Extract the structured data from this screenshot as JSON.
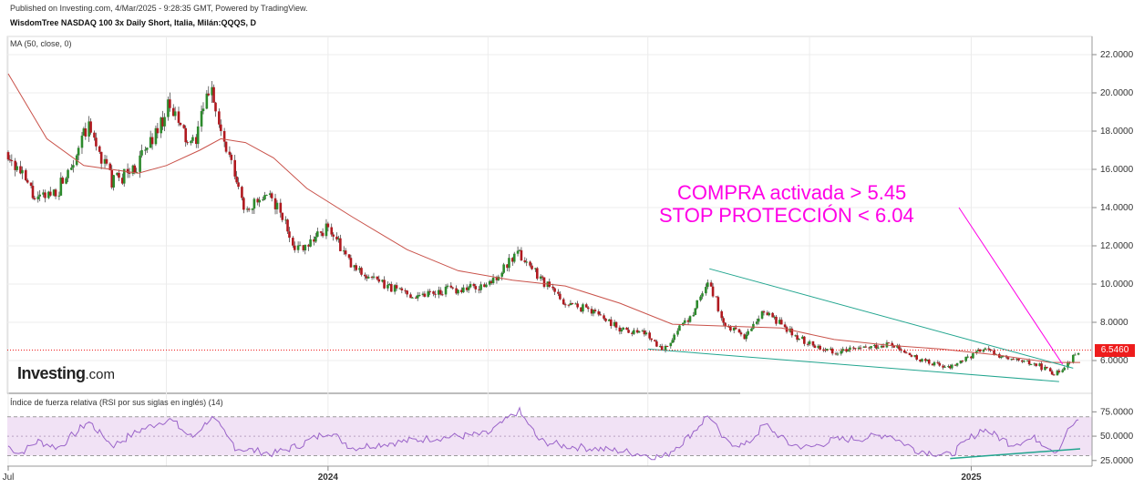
{
  "header": {
    "published": "Published on Investing.com, 4/Mar/2025 - 9:28:35 GMT, Powered by TradingView.",
    "instrument": "WisdomTree NASDAQ 100 3x Daily Short, Italia, Milán:QQQS, D",
    "ma_label": "MA (50, close, 0)",
    "rsi_label": "Índice de fuerza relativa (RSI por sus siglas en inglés) (14)"
  },
  "logo": {
    "brand": "Investing",
    "suffix": ".com"
  },
  "annotations": {
    "line1": "COMPRA activada > 5.45",
    "line2": "STOP PROTECCIÓN < 6.04"
  },
  "current_price_label": "6.5460",
  "colors": {
    "up": "#2c8a2c",
    "down": "#b0191f",
    "ma": "#c9524a",
    "wedge": "#22a58f",
    "annotation": "#ff00e6",
    "rsi_line": "#9a63c9",
    "rsi_band": "#f1e2f5",
    "price_line": "#ee1c1c"
  },
  "chart_data": [
    {
      "type": "candlestick",
      "title": "WisdomTree NASDAQ 100 3x Daily Short, Italia, Milán:QQQS, D",
      "y_ticks": [
        "22.0000",
        "20.0000",
        "18.0000",
        "16.0000",
        "14.0000",
        "12.0000",
        "10.0000",
        "8.0000",
        "6.0000"
      ],
      "x_ticks": [
        "Jul",
        "2024",
        "2025"
      ],
      "ylim": [
        5,
        22.5
      ],
      "close_series": [
        {
          "d": "2023-07-03",
          "v": 16.9
        },
        {
          "d": "2023-07-20",
          "v": 14.3
        },
        {
          "d": "2023-08-01",
          "v": 15.0
        },
        {
          "d": "2023-08-18",
          "v": 18.2
        },
        {
          "d": "2023-09-01",
          "v": 15.3
        },
        {
          "d": "2023-09-15",
          "v": 16.2
        },
        {
          "d": "2023-10-03",
          "v": 19.3
        },
        {
          "d": "2023-10-16",
          "v": 17.0
        },
        {
          "d": "2023-10-27",
          "v": 20.5
        },
        {
          "d": "2023-11-01",
          "v": 18.0
        },
        {
          "d": "2023-11-15",
          "v": 14.0
        },
        {
          "d": "2023-12-01",
          "v": 14.5
        },
        {
          "d": "2023-12-15",
          "v": 11.8
        },
        {
          "d": "2024-01-02",
          "v": 13.0
        },
        {
          "d": "2024-01-15",
          "v": 10.9
        },
        {
          "d": "2024-02-01",
          "v": 10.0
        },
        {
          "d": "2024-02-20",
          "v": 9.4
        },
        {
          "d": "2024-03-01",
          "v": 9.6
        },
        {
          "d": "2024-04-01",
          "v": 9.9
        },
        {
          "d": "2024-04-19",
          "v": 11.6
        },
        {
          "d": "2024-05-01",
          "v": 10.4
        },
        {
          "d": "2024-05-15",
          "v": 9.0
        },
        {
          "d": "2024-06-01",
          "v": 8.6
        },
        {
          "d": "2024-06-15",
          "v": 7.7
        },
        {
          "d": "2024-07-01",
          "v": 7.4
        },
        {
          "d": "2024-07-10",
          "v": 6.6
        },
        {
          "d": "2024-07-25",
          "v": 8.2
        },
        {
          "d": "2024-08-05",
          "v": 10.2
        },
        {
          "d": "2024-08-14",
          "v": 7.8
        },
        {
          "d": "2024-08-26",
          "v": 7.2
        },
        {
          "d": "2024-09-06",
          "v": 8.6
        },
        {
          "d": "2024-09-20",
          "v": 7.5
        },
        {
          "d": "2024-10-01",
          "v": 6.9
        },
        {
          "d": "2024-10-15",
          "v": 6.5
        },
        {
          "d": "2024-11-01",
          "v": 6.6
        },
        {
          "d": "2024-11-15",
          "v": 6.9
        },
        {
          "d": "2024-12-01",
          "v": 6.1
        },
        {
          "d": "2024-12-20",
          "v": 5.6
        },
        {
          "d": "2025-01-08",
          "v": 6.6
        },
        {
          "d": "2025-01-24",
          "v": 6.0
        },
        {
          "d": "2025-02-07",
          "v": 5.8
        },
        {
          "d": "2025-02-19",
          "v": 5.3
        },
        {
          "d": "2025-03-04",
          "v": 6.55
        }
      ],
      "ma_series": [
        {
          "d": "2023-07-03",
          "v": 21.0
        },
        {
          "d": "2023-07-25",
          "v": 17.6
        },
        {
          "d": "2023-08-15",
          "v": 16.2
        },
        {
          "d": "2023-09-15",
          "v": 15.8
        },
        {
          "d": "2023-10-01",
          "v": 16.2
        },
        {
          "d": "2023-10-20",
          "v": 17.0
        },
        {
          "d": "2023-11-01",
          "v": 17.6
        },
        {
          "d": "2023-11-15",
          "v": 17.4
        },
        {
          "d": "2023-12-01",
          "v": 16.6
        },
        {
          "d": "2023-12-20",
          "v": 15.0
        },
        {
          "d": "2024-01-15",
          "v": 13.5
        },
        {
          "d": "2024-02-15",
          "v": 11.8
        },
        {
          "d": "2024-03-15",
          "v": 10.7
        },
        {
          "d": "2024-04-15",
          "v": 10.2
        },
        {
          "d": "2024-05-15",
          "v": 9.9
        },
        {
          "d": "2024-06-15",
          "v": 9.0
        },
        {
          "d": "2024-07-15",
          "v": 7.9
        },
        {
          "d": "2024-08-15",
          "v": 7.8
        },
        {
          "d": "2024-09-15",
          "v": 7.7
        },
        {
          "d": "2024-10-15",
          "v": 7.1
        },
        {
          "d": "2024-11-15",
          "v": 6.8
        },
        {
          "d": "2024-12-15",
          "v": 6.6
        },
        {
          "d": "2025-01-15",
          "v": 6.3
        },
        {
          "d": "2025-02-15",
          "v": 5.9
        },
        {
          "d": "2025-03-04",
          "v": 5.9
        }
      ],
      "wedge_upper": [
        {
          "d": "2024-08-05",
          "v": 10.8
        },
        {
          "d": "2025-02-28",
          "v": 5.6
        }
      ],
      "wedge_lower": [
        {
          "d": "2024-07-01",
          "v": 6.6
        },
        {
          "d": "2025-02-20",
          "v": 4.9
        }
      ],
      "pointer_line": [
        {
          "d": "2024-12-25",
          "v": 14.0
        },
        {
          "d": "2025-02-22",
          "v": 5.8
        }
      ],
      "current_price": 6.546
    },
    {
      "type": "line",
      "title": "Índice de fuerza relativa (RSI por sus siglas en inglés) (14)",
      "y_ticks": [
        "75.0000",
        "50.0000",
        "25.0000"
      ],
      "ylim": [
        22,
        80
      ],
      "band": [
        30,
        70
      ],
      "series": [
        {
          "d": "2023-07-03",
          "v": 40
        },
        {
          "d": "2023-07-10",
          "v": 32
        },
        {
          "d": "2023-07-20",
          "v": 45
        },
        {
          "d": "2023-08-01",
          "v": 38
        },
        {
          "d": "2023-08-18",
          "v": 65
        },
        {
          "d": "2023-09-01",
          "v": 40
        },
        {
          "d": "2023-09-15",
          "v": 55
        },
        {
          "d": "2023-10-03",
          "v": 68
        },
        {
          "d": "2023-10-16",
          "v": 48
        },
        {
          "d": "2023-10-27",
          "v": 70
        },
        {
          "d": "2023-11-10",
          "v": 38
        },
        {
          "d": "2023-12-01",
          "v": 32
        },
        {
          "d": "2023-12-15",
          "v": 40
        },
        {
          "d": "2024-01-02",
          "v": 55
        },
        {
          "d": "2024-01-15",
          "v": 38
        },
        {
          "d": "2024-02-01",
          "v": 42
        },
        {
          "d": "2024-03-01",
          "v": 48
        },
        {
          "d": "2024-04-01",
          "v": 52
        },
        {
          "d": "2024-04-19",
          "v": 76
        },
        {
          "d": "2024-05-01",
          "v": 45
        },
        {
          "d": "2024-05-15",
          "v": 40
        },
        {
          "d": "2024-06-15",
          "v": 35
        },
        {
          "d": "2024-07-10",
          "v": 28
        },
        {
          "d": "2024-07-25",
          "v": 50
        },
        {
          "d": "2024-08-05",
          "v": 72
        },
        {
          "d": "2024-08-14",
          "v": 45
        },
        {
          "d": "2024-08-26",
          "v": 40
        },
        {
          "d": "2024-09-06",
          "v": 62
        },
        {
          "d": "2024-09-20",
          "v": 42
        },
        {
          "d": "2024-10-01",
          "v": 38
        },
        {
          "d": "2024-10-15",
          "v": 46
        },
        {
          "d": "2024-11-01",
          "v": 48
        },
        {
          "d": "2024-11-15",
          "v": 52
        },
        {
          "d": "2024-12-01",
          "v": 36
        },
        {
          "d": "2024-12-20",
          "v": 30
        },
        {
          "d": "2025-01-08",
          "v": 58
        },
        {
          "d": "2025-01-24",
          "v": 42
        },
        {
          "d": "2025-02-07",
          "v": 48
        },
        {
          "d": "2025-02-19",
          "v": 34
        },
        {
          "d": "2025-02-26",
          "v": 58
        },
        {
          "d": "2025-03-04",
          "v": 66
        }
      ],
      "support_line": [
        {
          "d": "2024-12-20",
          "v": 27
        },
        {
          "d": "2025-03-04",
          "v": 37
        }
      ]
    }
  ]
}
